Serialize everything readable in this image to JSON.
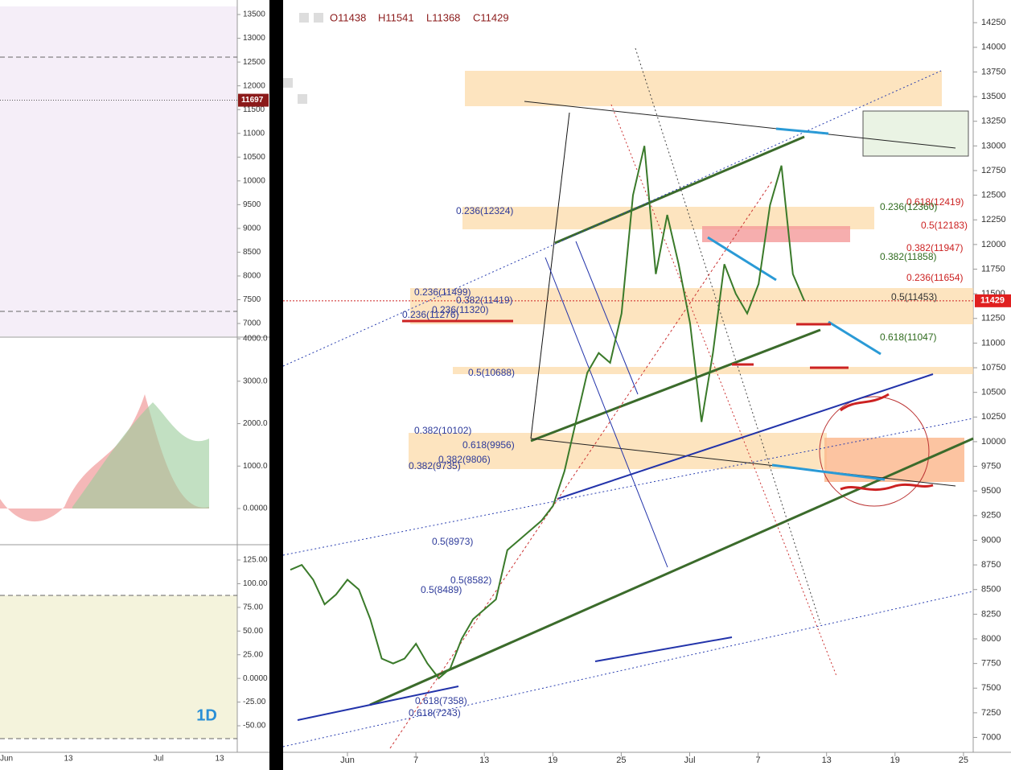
{
  "header": {
    "ohlc": [
      "O11438",
      "H11541",
      "L11368",
      "C11429"
    ]
  },
  "main_chart": {
    "type": "line",
    "color": "#3a7a2a",
    "ylim": [
      6890,
      14480
    ],
    "yticks": [
      7000,
      7250,
      7500,
      7750,
      8000,
      8250,
      8500,
      8750,
      9000,
      9250,
      9500,
      9750,
      10000,
      10250,
      10500,
      10750,
      11000,
      11250,
      11500,
      11750,
      12000,
      12250,
      12500,
      12750,
      13000,
      13250,
      13500,
      13750,
      14000,
      14250
    ],
    "xticks": [
      "Jun",
      "7",
      "13",
      "19",
      "25",
      "Jul",
      "7",
      "13",
      "19",
      "25"
    ],
    "last_price": 11429,
    "values": [
      8700,
      8750,
      8600,
      8350,
      8450,
      8600,
      8500,
      8200,
      7800,
      7750,
      7800,
      7950,
      7750,
      7600,
      7700,
      8000,
      8200,
      8300,
      8400,
      8900,
      9000,
      9100,
      9200,
      9350,
      9700,
      10200,
      10700,
      10900,
      10800,
      11300,
      12500,
      13000,
      11700,
      12300,
      11800,
      11200,
      10200,
      10900,
      11800,
      11500,
      11300,
      11600,
      12400,
      12800,
      11700,
      11429
    ],
    "fib_levels": [
      "0.236(12324)",
      "0.618(12419)",
      "0.236(12360)",
      "0.5(12183)",
      "0.382(11947)",
      "0.382(11858)",
      "0.236(11654)",
      "0.236(11499)",
      "0.382(11419)",
      "0.5(11453)",
      "0.236(11320)",
      "0.236(11276)",
      "0.618(11047)",
      "0.5(10688)",
      "0.382(10102)",
      "0.618(9956)",
      "0.382(9806)",
      "0.382(9735)",
      "0.5(8973)",
      "0.5(8582)",
      "0.5(8489)",
      "0.618(7358)",
      "0.618(7243)"
    ]
  },
  "left_chart": {
    "price_ylim": [
      6730,
      13670
    ],
    "price_ticks": [
      7000,
      7500,
      8000,
      8500,
      9000,
      9500,
      10000,
      10500,
      11000,
      11500,
      12000,
      12500,
      13000,
      13500
    ],
    "last_price": 11697,
    "osc_ylim": [
      -815,
      4020
    ],
    "osc_ticks": [
      {
        "value": 0,
        "label": "0.0000"
      },
      {
        "value": 1000,
        "label": "1000.0"
      },
      {
        "value": 2000,
        "label": "2000.0"
      },
      {
        "value": 3000,
        "label": "3000.0"
      },
      {
        "value": 4000,
        "label": "4000.0"
      }
    ],
    "rsi_ylim": [
      -78,
      138.6
    ],
    "rsi_ticks": [
      {
        "value": -50,
        "label": "-50.00"
      },
      {
        "value": -25,
        "label": "-25.00"
      },
      {
        "value": 0,
        "label": "0.0000"
      },
      {
        "value": 25,
        "label": "25.00"
      },
      {
        "value": 50,
        "label": "50.00"
      },
      {
        "value": 75,
        "label": "75.00"
      },
      {
        "value": 100,
        "label": "100.00"
      },
      {
        "value": 125,
        "label": "125.00"
      }
    ],
    "xticks": [
      "Jun",
      "13",
      "Jul",
      "13"
    ],
    "interval": "1D"
  }
}
